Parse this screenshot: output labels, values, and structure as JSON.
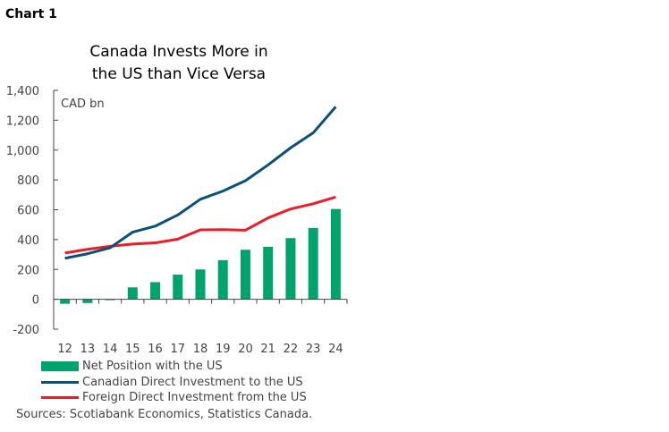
{
  "label": "Chart 1",
  "chart_data": {
    "type": "bar+line",
    "title": "Canada Invests More in the US than Vice Versa",
    "title_lines": [
      "Canada Invests More in",
      "the US than Vice Versa"
    ],
    "unit_label": "CAD bn",
    "categories": [
      "12",
      "13",
      "14",
      "15",
      "16",
      "17",
      "18",
      "19",
      "20",
      "21",
      "22",
      "23",
      "24"
    ],
    "ylim": [
      -200,
      1400
    ],
    "yticks": [
      -200,
      0,
      200,
      400,
      600,
      800,
      1000,
      1200,
      1400
    ],
    "ytick_labels": [
      "-200",
      "0",
      "200",
      "400",
      "600",
      "800",
      "1,000",
      "1,200",
      "1,400"
    ],
    "grid": false,
    "legend_placement": "bottom",
    "series": [
      {
        "name": "Net Position with the US",
        "type": "bar",
        "color": "#00a36c",
        "values": [
          -30,
          -25,
          -5,
          80,
          115,
          165,
          200,
          262,
          332,
          352,
          410,
          478,
          605
        ]
      },
      {
        "name": "Canadian Direct Investment to the US",
        "type": "line",
        "color": "#0b5079",
        "values": [
          275,
          305,
          345,
          450,
          490,
          565,
          670,
          725,
          795,
          900,
          1015,
          1115,
          1290
        ]
      },
      {
        "name": "Foreign Direct Investment from the US",
        "type": "line",
        "color": "#ee1c25",
        "values": [
          310,
          335,
          355,
          370,
          378,
          403,
          465,
          467,
          463,
          545,
          605,
          640,
          685
        ]
      }
    ]
  },
  "sources": "Sources: Scotiabank Economics, Statistics Canada."
}
